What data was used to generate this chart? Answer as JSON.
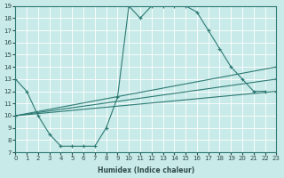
{
  "xlabel": "Humidex (Indice chaleur)",
  "bg_color": "#c8eae8",
  "line_color": "#2d7a74",
  "xlim": [
    0,
    23
  ],
  "ylim": [
    7,
    19
  ],
  "xticks": [
    0,
    1,
    2,
    3,
    4,
    5,
    6,
    7,
    8,
    9,
    10,
    11,
    12,
    13,
    14,
    15,
    16,
    17,
    18,
    19,
    20,
    21,
    22,
    23
  ],
  "yticks": [
    7,
    8,
    9,
    10,
    11,
    12,
    13,
    14,
    15,
    16,
    17,
    18,
    19
  ],
  "lines": [
    {
      "x": [
        0,
        1,
        2,
        3,
        4,
        5,
        6,
        7,
        8,
        9,
        10,
        11,
        12,
        13,
        14,
        15,
        16,
        17,
        18,
        19,
        20,
        21,
        22
      ],
      "y": [
        13,
        12,
        10,
        8.5,
        7.5,
        7.5,
        7.5,
        7.5,
        9,
        11.5,
        19,
        18,
        19,
        19,
        19,
        19,
        18.5,
        17,
        15.5,
        14,
        13,
        12,
        12
      ]
    },
    {
      "x": [
        0,
        23
      ],
      "y": [
        10,
        13
      ]
    },
    {
      "x": [
        0,
        23
      ],
      "y": [
        10,
        12
      ]
    },
    {
      "x": [
        0,
        23
      ],
      "y": [
        10,
        14
      ]
    }
  ]
}
